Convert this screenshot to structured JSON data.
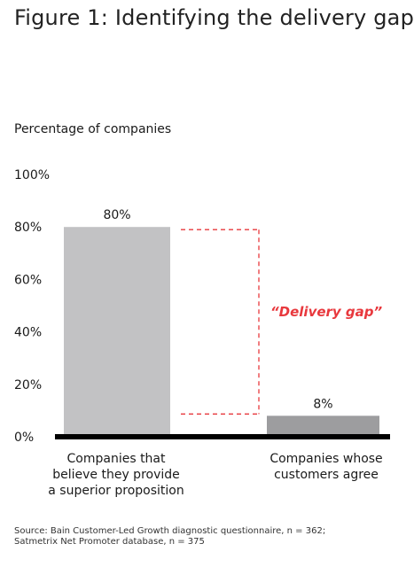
{
  "figure": {
    "title": "Figure 1:  Identifying the delivery gap",
    "source_lines": [
      "Source: Bain Customer-Led Growth diagnostic questionnaire, n = 362;",
      "Satmetrix Net Promoter database, n = 375"
    ]
  },
  "chart_data": {
    "type": "bar",
    "title": "Figure 1:  Identifying the delivery gap",
    "ylabel": "Percentage of companies",
    "xlabel": "",
    "ylim": [
      0,
      100
    ],
    "yticks": [
      "0%",
      "20%",
      "40%",
      "60%",
      "80%",
      "100%"
    ],
    "ytick_values": [
      0,
      20,
      40,
      60,
      80,
      100
    ],
    "categories": [
      [
        "Companies that",
        "believe they provide",
        "a superior proposition"
      ],
      [
        "Companies whose",
        "customers agree"
      ]
    ],
    "values": [
      80,
      8
    ],
    "data_labels": [
      "80%",
      "8%"
    ],
    "colors": [
      "#c2c2c4",
      "#9d9d9f"
    ],
    "grid": false,
    "annotation": {
      "text": "“Delivery gap”",
      "color": "#e8383d"
    }
  }
}
